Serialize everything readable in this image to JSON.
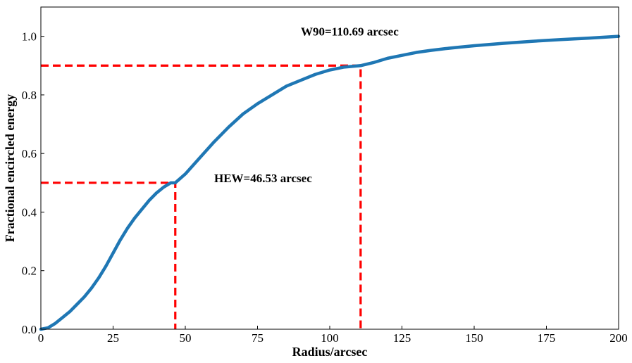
{
  "chart_data": {
    "type": "line",
    "title": "",
    "xlabel": "Radius/arcsec",
    "ylabel": "Fractional encircled energy",
    "xlim": [
      0,
      200
    ],
    "ylim": [
      0,
      1.1
    ],
    "x_ticks": [
      0,
      25,
      50,
      75,
      100,
      125,
      150,
      175,
      200
    ],
    "x_tick_labels": [
      "0",
      "25",
      "50",
      "75",
      "100",
      "125",
      "150",
      "175",
      "200"
    ],
    "y_ticks": [
      0.0,
      0.2,
      0.4,
      0.6,
      0.8,
      1.0
    ],
    "y_tick_labels": [
      "0.0",
      "0.2",
      "0.4",
      "0.6",
      "0.8",
      "1.0"
    ],
    "grid": false,
    "series": [
      {
        "color": "#1f77b4",
        "x": [
          0,
          2.5,
          5,
          7.5,
          10,
          12.5,
          15,
          17.5,
          20,
          22.5,
          25,
          27.5,
          30,
          32.5,
          35,
          37.5,
          40,
          42.5,
          45,
          46.53,
          50,
          55,
          60,
          65,
          70,
          75,
          80,
          85,
          90,
          95,
          100,
          105,
          110.69,
          115,
          120,
          125,
          130,
          135,
          140,
          145,
          150,
          160,
          170,
          180,
          190,
          200
        ],
        "y": [
          0.0,
          0.005,
          0.02,
          0.04,
          0.06,
          0.085,
          0.11,
          0.14,
          0.175,
          0.215,
          0.26,
          0.305,
          0.345,
          0.38,
          0.41,
          0.44,
          0.465,
          0.485,
          0.5,
          0.5,
          0.53,
          0.585,
          0.64,
          0.69,
          0.735,
          0.77,
          0.8,
          0.83,
          0.85,
          0.87,
          0.885,
          0.895,
          0.9,
          0.91,
          0.925,
          0.935,
          0.945,
          0.952,
          0.958,
          0.963,
          0.968,
          0.976,
          0.983,
          0.989,
          0.994,
          1.0
        ]
      }
    ],
    "reference_lines": [
      {
        "color": "#ff0000",
        "style": "dashed",
        "points": [
          [
            0,
            0.5
          ],
          [
            46.53,
            0.5
          ],
          [
            46.53,
            0.0
          ]
        ]
      },
      {
        "color": "#ff0000",
        "style": "dashed",
        "points": [
          [
            0,
            0.9
          ],
          [
            110.69,
            0.9
          ],
          [
            110.69,
            0.0
          ]
        ]
      }
    ],
    "annotations": [
      {
        "text": "HEW=46.53 arcsec",
        "x": 60,
        "y": 0.5
      },
      {
        "text": "W90=110.69 arcsec",
        "x": 90,
        "y": 1.0
      }
    ]
  }
}
